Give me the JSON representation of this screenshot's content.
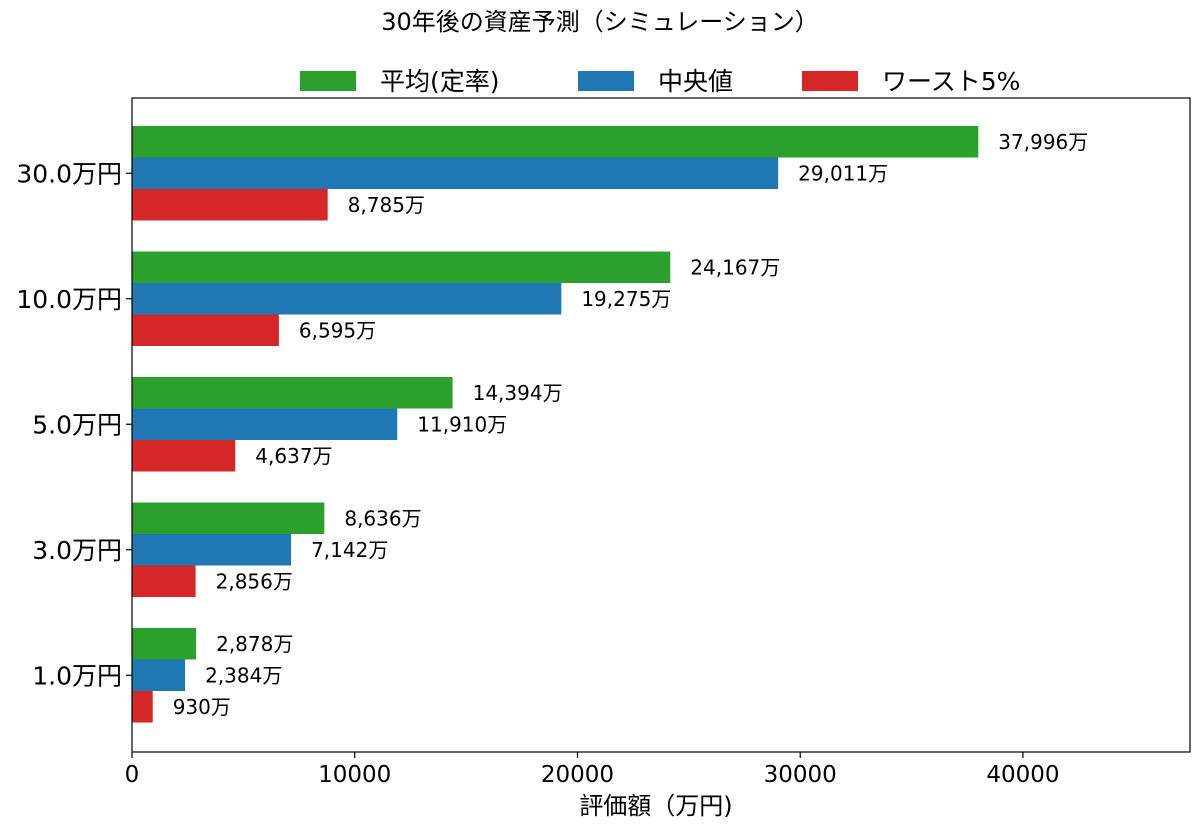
{
  "chart_data": {
    "type": "bar",
    "orientation": "horizontal",
    "title": "30年後の資産予測（シミュレーション）",
    "xlabel": "評価額（万円)",
    "ylabel": "",
    "xlim": [
      0,
      47500
    ],
    "xticks": [
      0,
      10000,
      20000,
      30000,
      40000
    ],
    "grid": false,
    "legend_position": "top",
    "categories": [
      "30.0万円",
      "10.0万円",
      "5.0万円",
      "3.0万円",
      "1.0万円"
    ],
    "series": [
      {
        "name": "平均(定率)",
        "color": "#2ca02c",
        "values": [
          37996,
          24167,
          14394,
          8636,
          2878
        ],
        "labels": [
          "37,996万",
          "24,167万",
          "14,394万",
          "8,636万",
          "2,878万"
        ]
      },
      {
        "name": "中央値",
        "color": "#1f77b4",
        "values": [
          29011,
          19275,
          11910,
          7142,
          2384
        ],
        "labels": [
          "29,011万",
          "19,275万",
          "11,910万",
          "7,142万",
          "2,384万"
        ]
      },
      {
        "name": "ワースト5%",
        "color": "#d62728",
        "values": [
          8785,
          6595,
          4637,
          2856,
          930
        ],
        "labels": [
          "8,785万",
          "6,595万",
          "4,637万",
          "2,856万",
          "930万"
        ]
      }
    ]
  }
}
